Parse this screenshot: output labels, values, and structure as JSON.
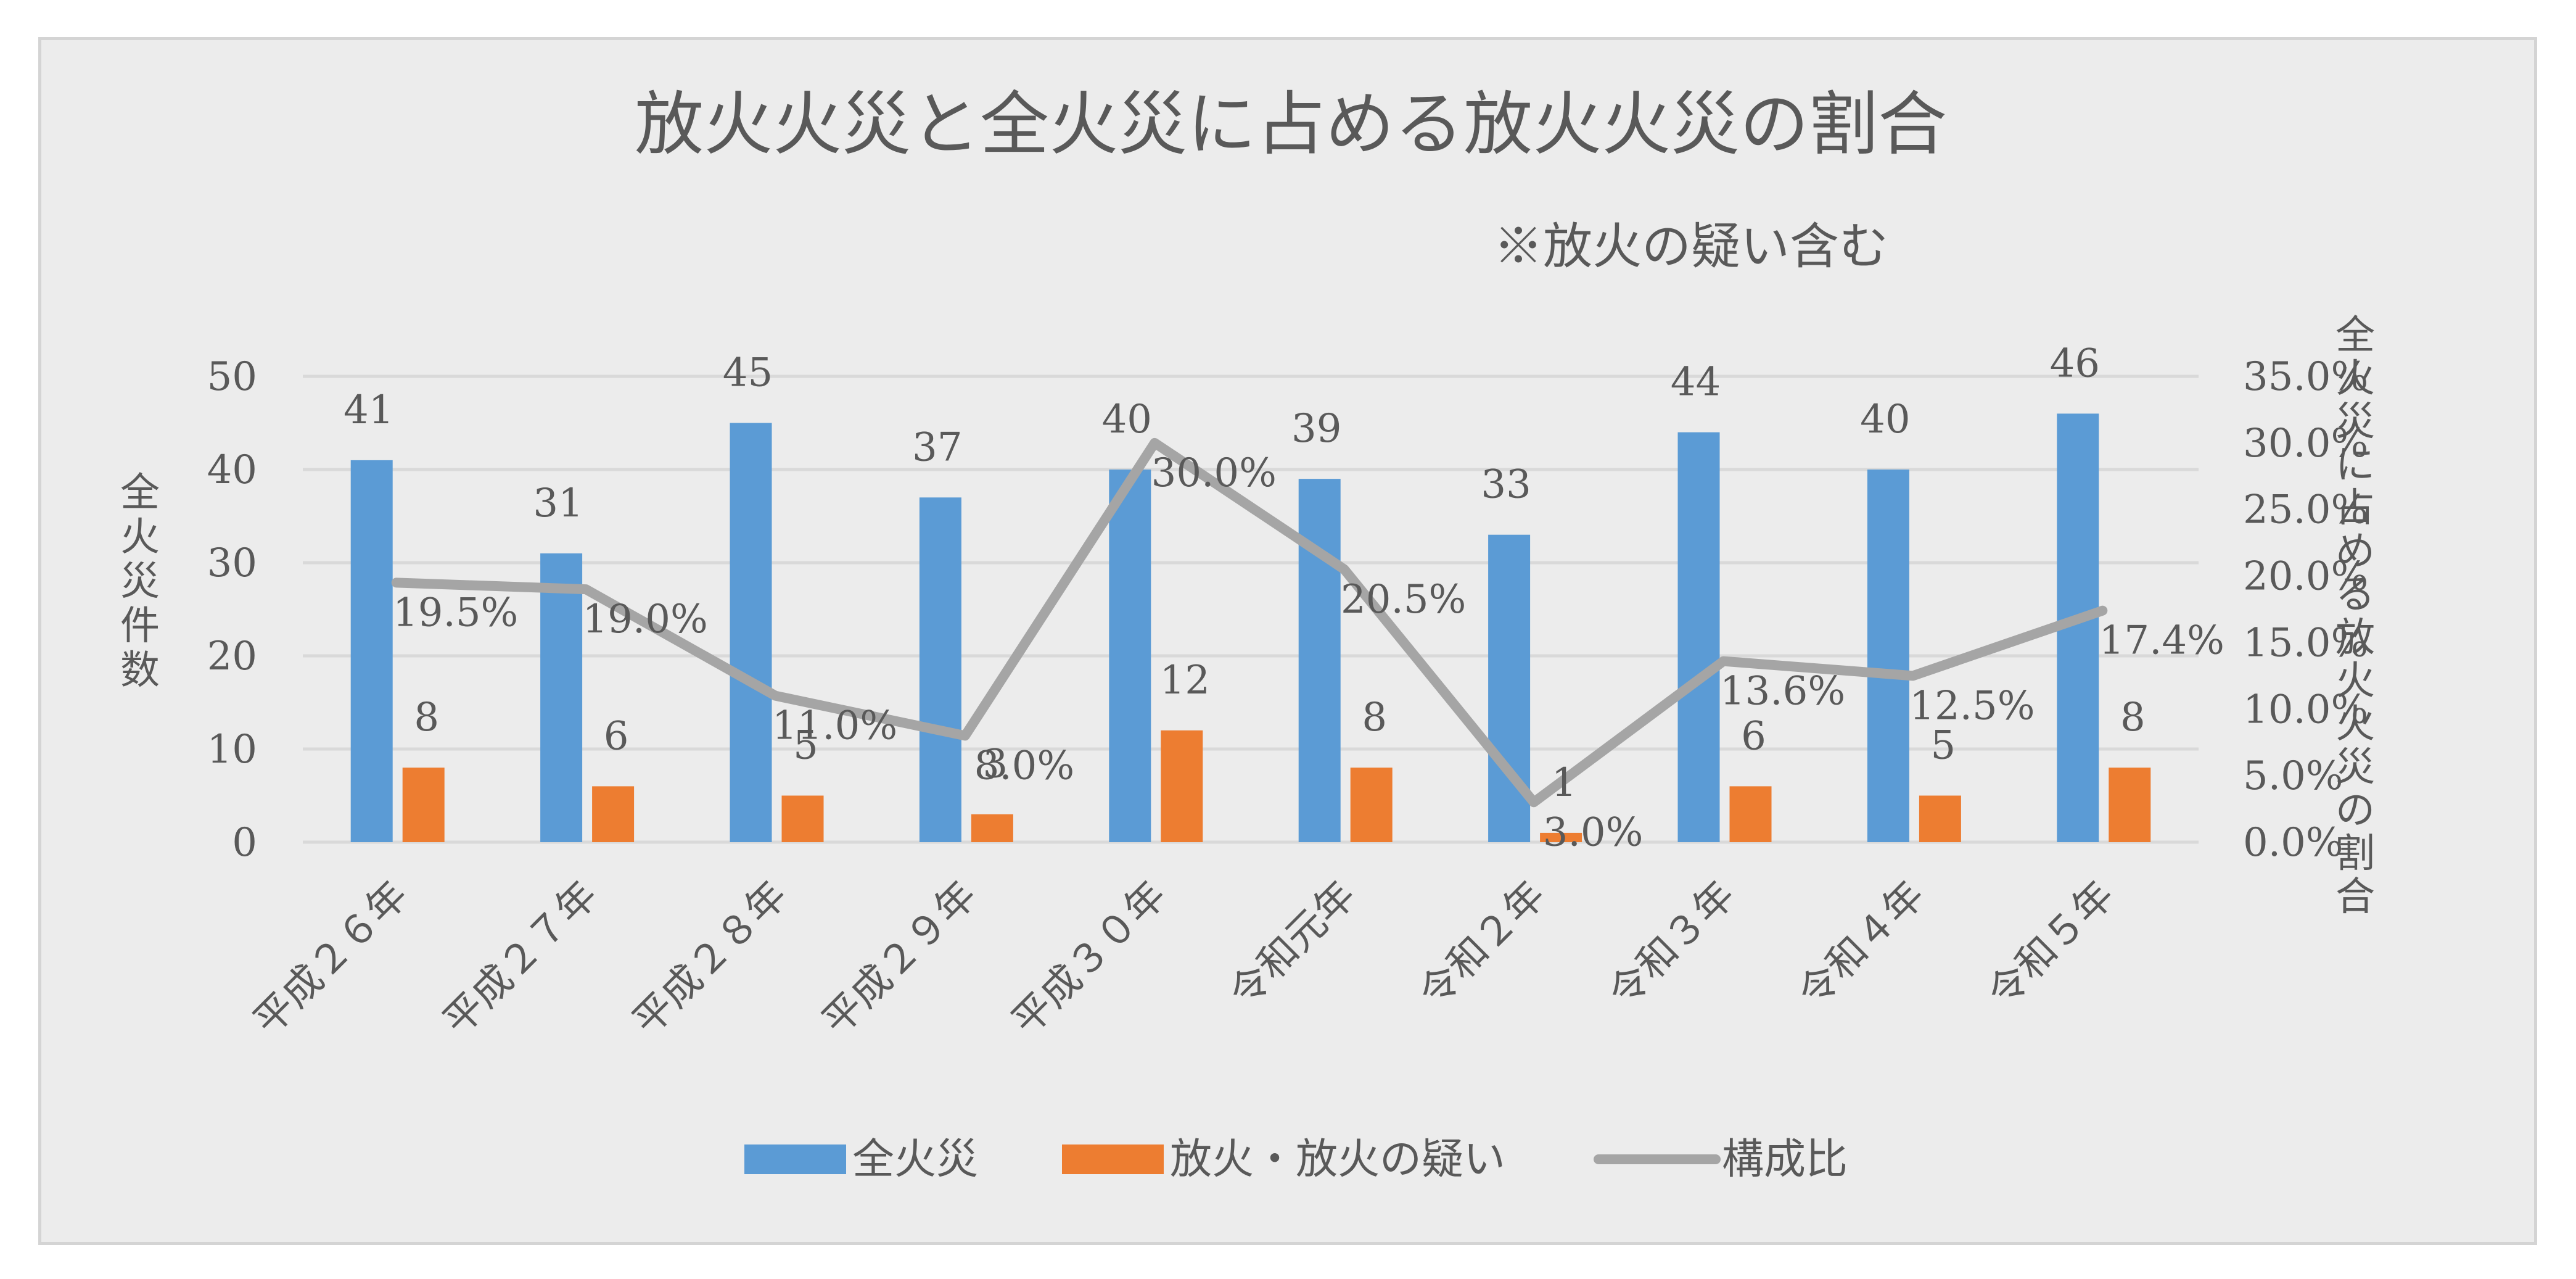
{
  "chart_data": {
    "type": "bar",
    "title": "放火火災と全火災に占める放火火災の割合",
    "subtitle": "※放火の疑い含む",
    "categories": [
      "平成２６年",
      "平成２７年",
      "平成２８年",
      "平成２９年",
      "平成３０年",
      "令和元年",
      "令和２年",
      "令和３年",
      "令和４年",
      "令和５年"
    ],
    "series": [
      {
        "name": "全火災",
        "type": "bar",
        "axis": "left",
        "color": "#5b9bd5",
        "values": [
          41,
          31,
          45,
          37,
          40,
          39,
          33,
          44,
          40,
          46
        ]
      },
      {
        "name": "放火・放火の疑い",
        "type": "bar",
        "axis": "left",
        "color": "#ed7d31",
        "values": [
          8,
          6,
          5,
          3,
          12,
          8,
          1,
          6,
          5,
          8
        ]
      },
      {
        "name": "構成比",
        "type": "line",
        "axis": "right",
        "color": "#a5a5a5",
        "values": [
          19.5,
          19.0,
          11.0,
          8.0,
          30.0,
          20.5,
          3.0,
          13.6,
          12.5,
          17.4
        ],
        "labels": [
          "19.5%",
          "19.0%",
          "11.0%",
          "8.0%",
          "30.0%",
          "20.5%",
          "3.0%",
          "13.6%",
          "12.5%",
          "17.4%"
        ]
      }
    ],
    "ylabel": "全火災件数",
    "y2label": "全火災に占める放火火災の割合",
    "ylim": [
      0,
      50
    ],
    "y2lim": [
      0,
      35
    ],
    "yticks": [
      "0",
      "10",
      "20",
      "30",
      "40",
      "50"
    ],
    "y2ticks": [
      "0.0%",
      "5.0%",
      "10.0%",
      "15.0%",
      "20.0%",
      "25.0%",
      "30.0%",
      "35.0%"
    ],
    "grid": true,
    "legend_position": "bottom"
  }
}
